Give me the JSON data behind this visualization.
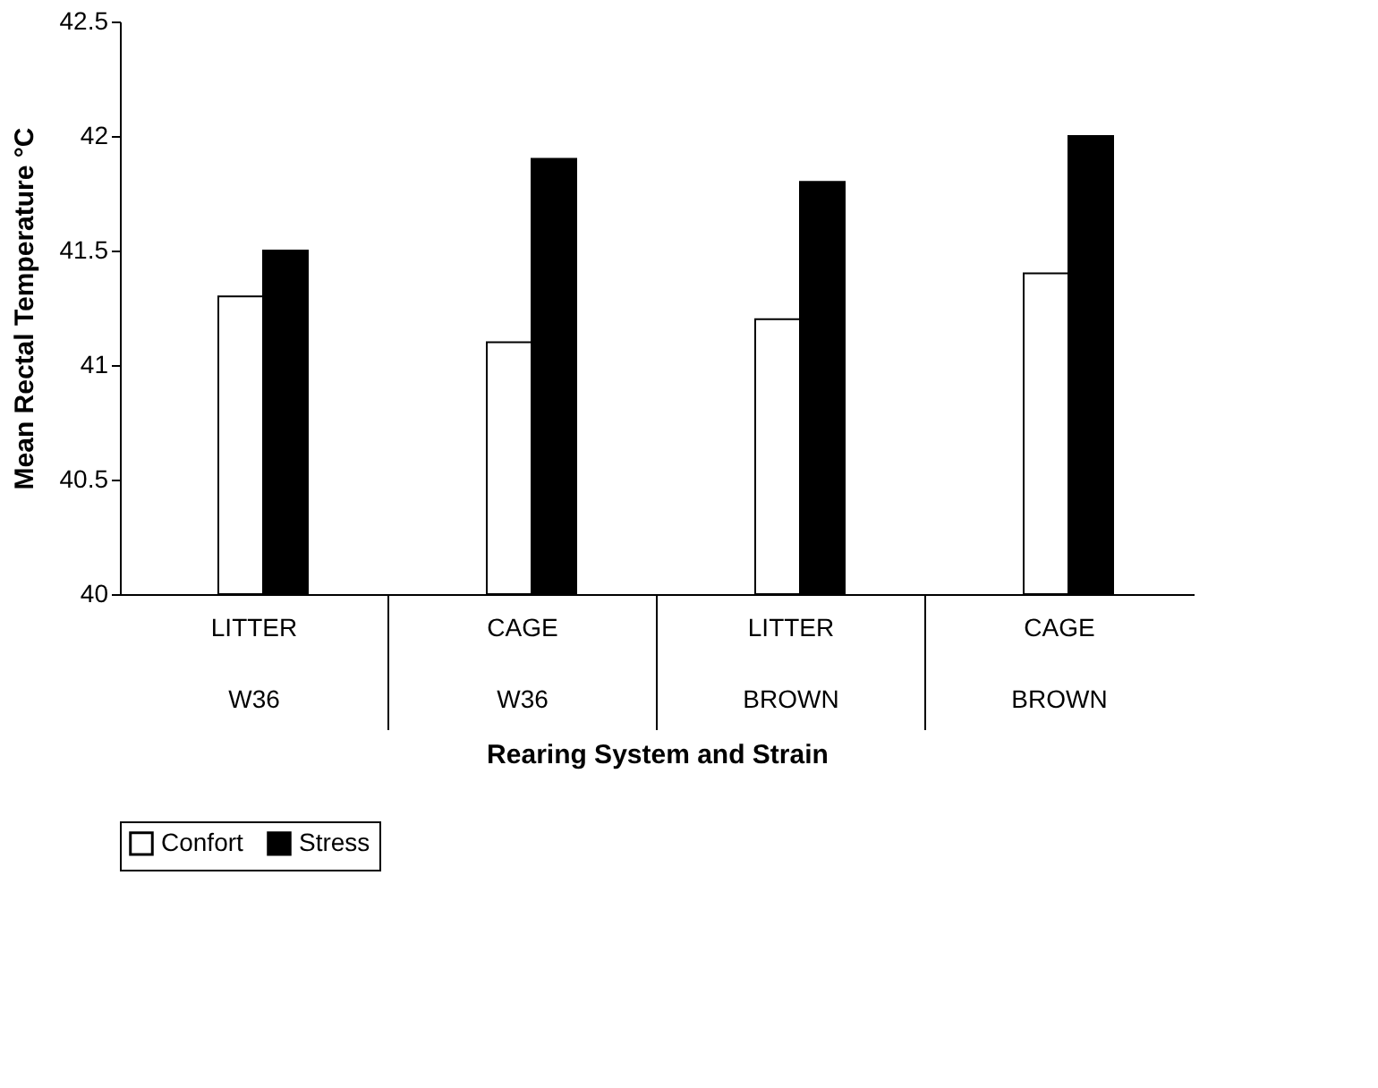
{
  "chart_data": {
    "type": "bar",
    "xlabel": "Rearing System and Strain",
    "ylabel": "Mean Rectal Temperature °C",
    "categories": [
      "LITTER\nW36",
      "CAGE\nW36",
      "LITTER\nBROWN",
      "CAGE\nBROWN"
    ],
    "series": [
      {
        "name": "Confort",
        "color": "#ffffff",
        "values": [
          41.3,
          41.1,
          41.2,
          41.4
        ]
      },
      {
        "name": "Stress",
        "color": "#000000",
        "values": [
          41.5,
          41.9,
          41.8,
          42.0
        ]
      }
    ],
    "ylim": [
      40,
      42.5
    ],
    "yticks": [
      40,
      40.5,
      41,
      41.5,
      42,
      42.5
    ],
    "grid": false,
    "legend": "bottom"
  }
}
